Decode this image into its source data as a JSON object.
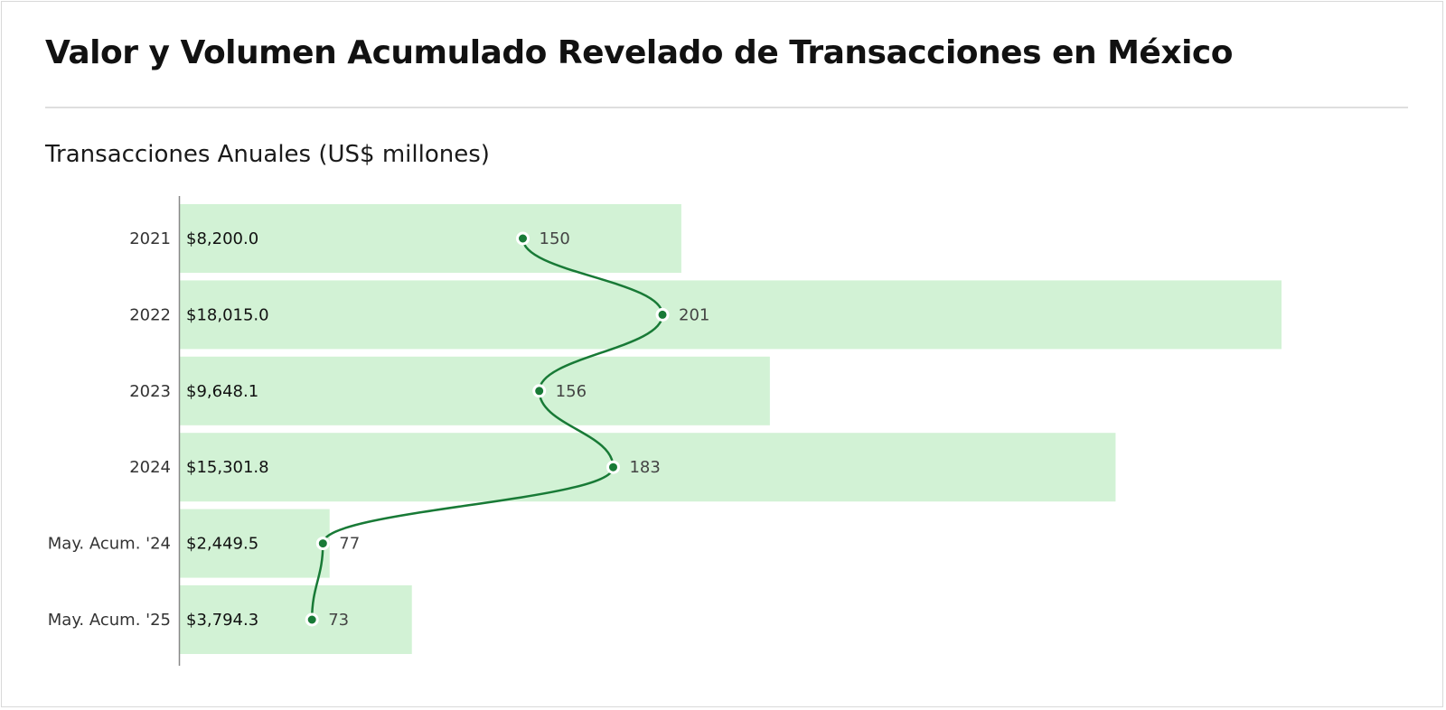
{
  "title": "Valor y Volumen Acumulado Revelado de Transacciones en México",
  "subtitle": "Transacciones Anuales (US$ millones)",
  "colors": {
    "bar": "#d2f2d5",
    "line": "#187a36",
    "axis": "#888888"
  },
  "chart_data": {
    "type": "bar",
    "orientation": "horizontal",
    "categories": [
      "2021",
      "2022",
      "2023",
      "2024",
      "May. Acum. '24",
      "May. Acum. '25"
    ],
    "series": [
      {
        "values": [
          8200.0,
          18015.0,
          9648.1,
          15301.8,
          2449.5,
          3794.3
        ],
        "labels": [
          "$8,200.0",
          "$18,015.0",
          "$9,648.1",
          "$15,301.8",
          "$2,449.5",
          "$3,794.3"
        ]
      },
      {
        "type": "line",
        "values": [
          150,
          201,
          156,
          183,
          77,
          73
        ],
        "labels": [
          "150",
          "201",
          "156",
          "183",
          "77",
          "73"
        ]
      }
    ],
    "xlim": [
      0,
      18015.0
    ],
    "count_range": [
      0,
      300
    ],
    "grid": false,
    "legend": "none"
  }
}
